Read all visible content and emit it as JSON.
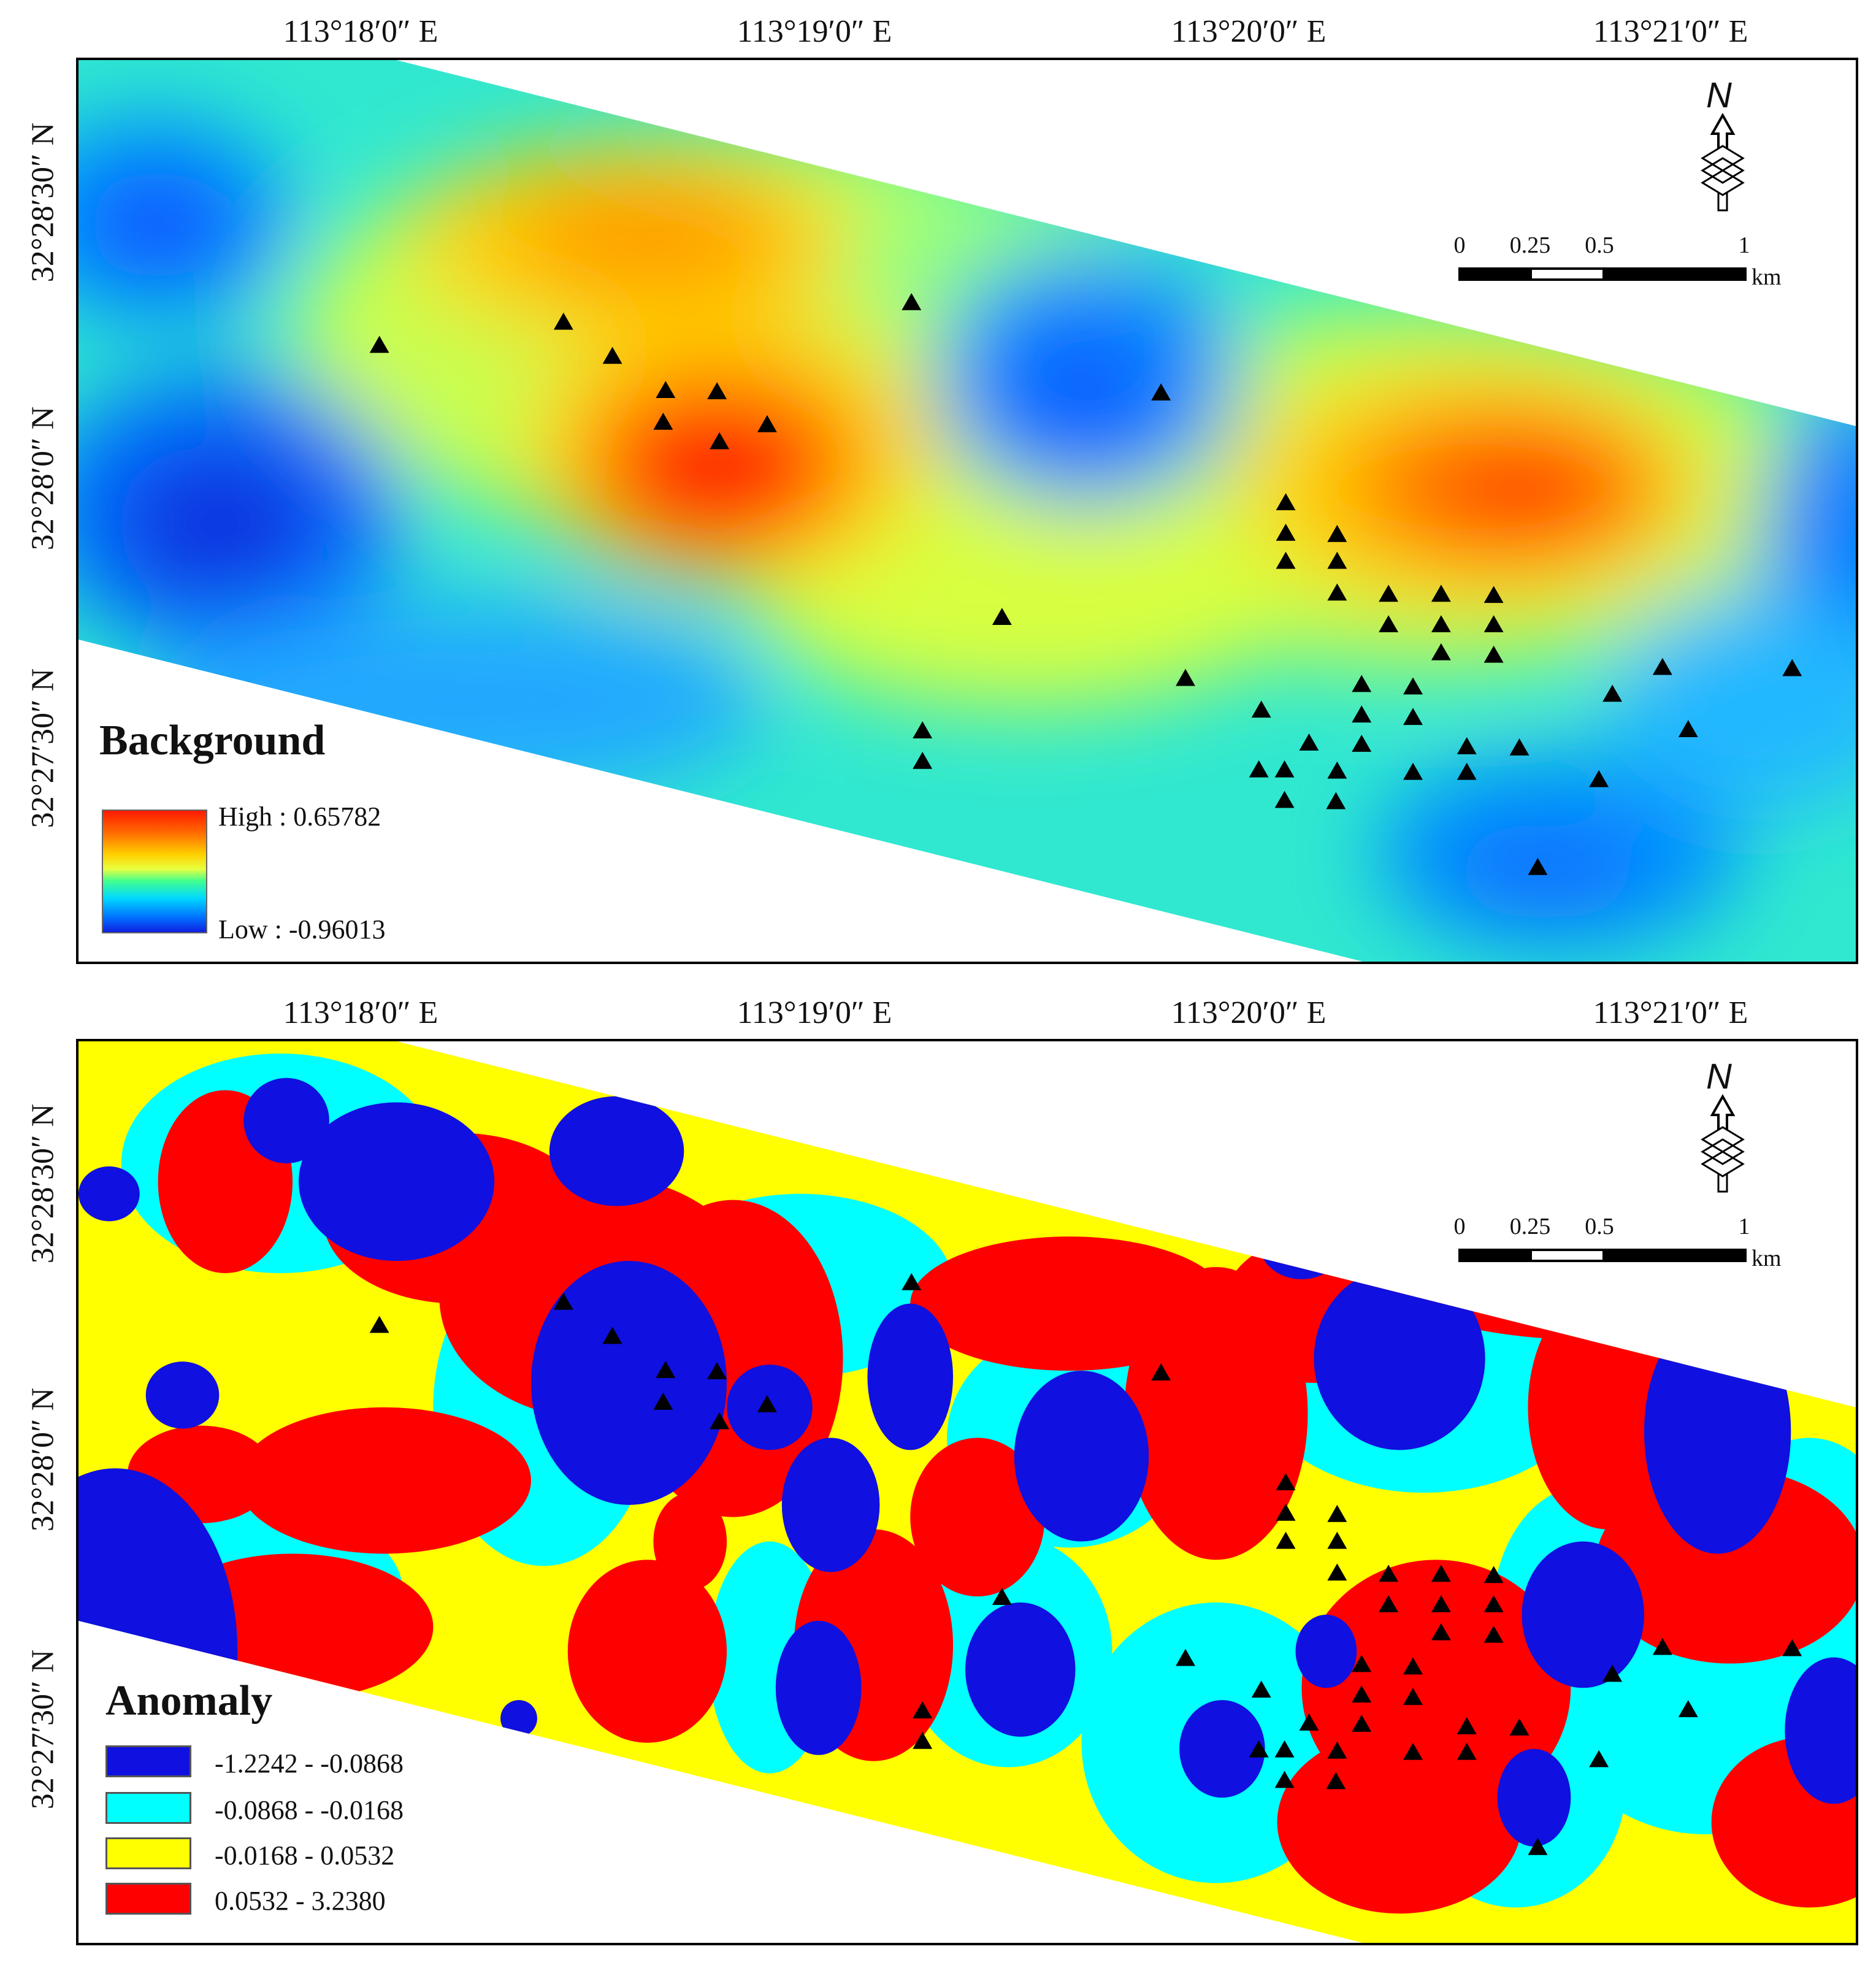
{
  "panels": {
    "background": {
      "lon_labels": [
        "113°18′0″ E",
        "113°19′0″ E",
        "113°20′0″ E",
        "113°21′0″ E"
      ],
      "lat_labels": [
        "32°28′30″ N",
        "32°28′0″ N",
        "32°27′30″ N"
      ],
      "legend": {
        "title": "Background",
        "high_label": "High : 0.65782",
        "low_label": "Low : -0.96013"
      },
      "north_letter": "N",
      "scale_labels": [
        "0",
        "0.25",
        "0.5",
        "1"
      ],
      "scale_unit": "km"
    },
    "anomaly": {
      "lon_labels": [
        "113°18′0″ E",
        "113°19′0″ E",
        "113°20′0″ E",
        "113°21′0″ E"
      ],
      "lat_labels": [
        "32°28′30″ N",
        "32°28′0″ N",
        "32°27′30″ N"
      ],
      "legend": {
        "title": "Anomaly",
        "classes": [
          {
            "label": "-1.2242 - -0.0868",
            "color": "#1010e0"
          },
          {
            "label": "-0.0868 - -0.0168",
            "color": "#00ffff"
          },
          {
            "label": "-0.0168 - 0.0532",
            "color": "#ffff00"
          },
          {
            "label": "0.0532 - 3.2380",
            "color": "#ff0000"
          }
        ]
      },
      "north_letter": "N",
      "scale_labels": [
        "0",
        "0.25",
        "0.5",
        "1"
      ],
      "scale_unit": "km"
    }
  },
  "colors": {
    "gradient_high": "#ff1a00",
    "gradient_low": "#1020e0",
    "marker": "#000000"
  },
  "icons": [
    "north-arrow-icon",
    "sample-site-triangle-icon"
  ]
}
